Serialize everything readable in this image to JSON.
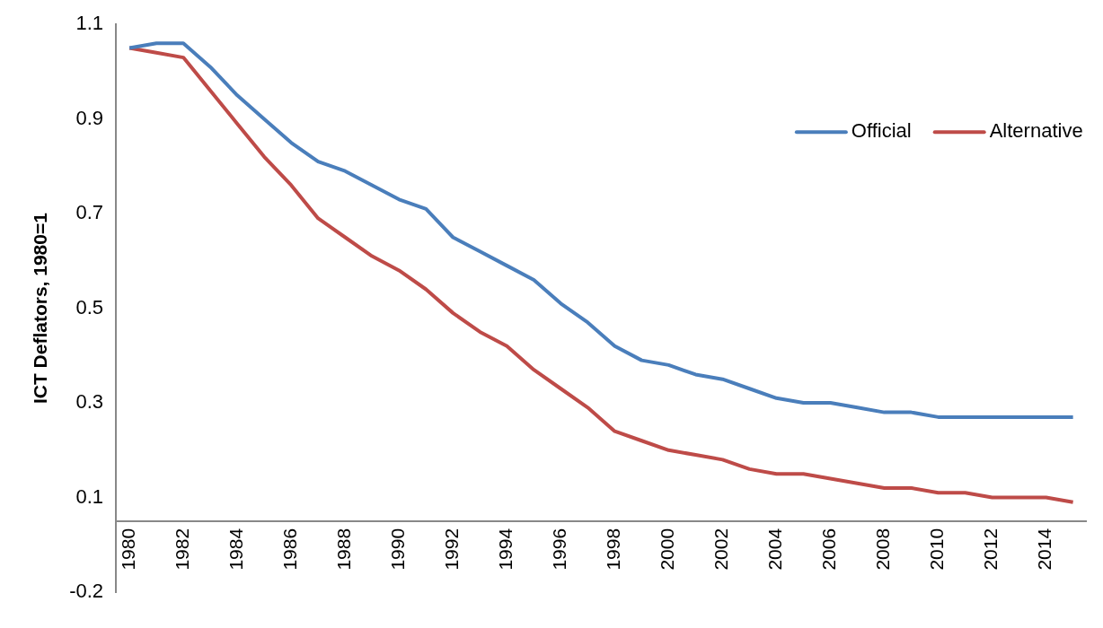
{
  "chart_data": {
    "type": "line",
    "ylabel": "ICT Deflators, 1980=1",
    "categories": [
      "1980",
      null,
      "1982",
      null,
      "1984",
      null,
      "1986",
      null,
      "1988",
      null,
      "1990",
      null,
      "1992",
      null,
      "1994",
      null,
      "1996",
      null,
      "1998",
      null,
      "2000",
      null,
      "2002",
      null,
      "2004",
      null,
      "2006",
      null,
      "2008",
      null,
      "2010",
      null,
      "2012",
      null,
      "2014",
      null
    ],
    "series": [
      {
        "name": "Official",
        "color": "#4a7ebb",
        "values": [
          1.0,
          1.01,
          1.01,
          0.96,
          0.9,
          0.85,
          0.8,
          0.76,
          0.74,
          0.71,
          0.68,
          0.66,
          0.6,
          0.57,
          0.54,
          0.51,
          0.46,
          0.42,
          0.37,
          0.34,
          0.33,
          0.31,
          0.3,
          0.28,
          0.26,
          0.25,
          0.25,
          0.24,
          0.23,
          0.23,
          0.22,
          0.22,
          0.22,
          0.22,
          0.22,
          0.22
        ]
      },
      {
        "name": "Alternative",
        "color": "#be4b48",
        "values": [
          1.0,
          0.99,
          0.98,
          0.91,
          0.84,
          0.77,
          0.71,
          0.64,
          0.6,
          0.56,
          0.53,
          0.49,
          0.44,
          0.4,
          0.37,
          0.32,
          0.28,
          0.24,
          0.19,
          0.17,
          0.15,
          0.14,
          0.13,
          0.11,
          0.1,
          0.1,
          0.09,
          0.08,
          0.07,
          0.07,
          0.06,
          0.06,
          0.05,
          0.05,
          0.05,
          0.04
        ]
      }
    ],
    "ylim": [
      -0.15,
      1.05
    ],
    "yticks": [
      {
        "value": -0.15,
        "label": "-0.2"
      },
      {
        "value": 0.05,
        "label": "0.1"
      },
      {
        "value": 0.25,
        "label": "0.3"
      },
      {
        "value": 0.45,
        "label": "0.5"
      },
      {
        "value": 0.65,
        "label": "0.7"
      },
      {
        "value": 0.85,
        "label": "0.9"
      },
      {
        "value": 1.05,
        "label": "1.1"
      }
    ],
    "grid": false,
    "legend": "top right",
    "marker": "none",
    "line_style": "solid"
  }
}
